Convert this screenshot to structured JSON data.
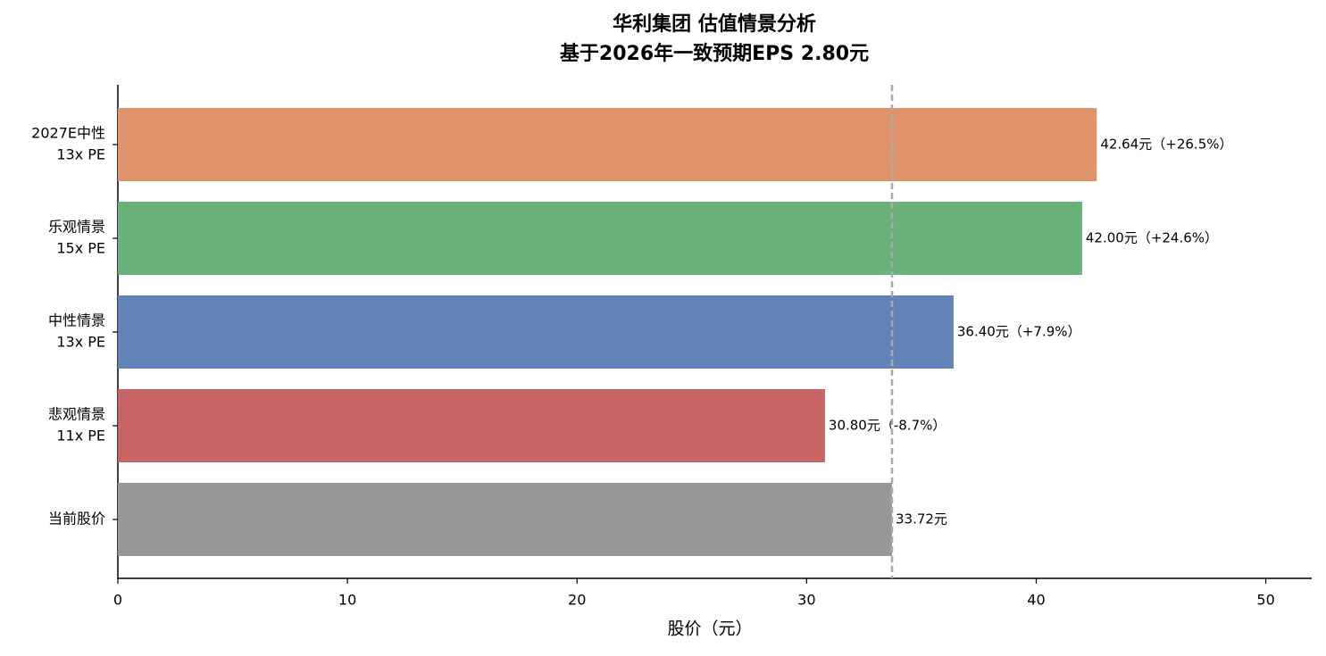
{
  "chart_data": {
    "type": "hbar",
    "title": "华利集团 估值情景分析",
    "subtitle": "基于2026年一致预期EPS 2.80元",
    "x_label": "股价（元）",
    "categories": [
      [
        "2027E中性",
        "13x PE"
      ],
      [
        "乐观情景",
        "15x PE"
      ],
      [
        "中性情景",
        "13x PE"
      ],
      [
        "悲观情景",
        "11x PE"
      ],
      [
        "当前股价"
      ]
    ],
    "values": [
      42.64,
      42.0,
      36.4,
      30.8,
      33.72
    ],
    "value_labels": [
      "42.64元（+26.5%）",
      "42.00元（+24.6%）",
      "36.40元（+7.9%）",
      "30.80元（-8.7%）",
      "33.72元"
    ],
    "colors": [
      "#e0926a",
      "#6ab17b",
      "#6283b8",
      "#c96567",
      "#979797"
    ],
    "reference_color": "#aaaaaa",
    "xlim": [
      0,
      52
    ],
    "xticks": [
      0,
      10,
      20,
      30,
      40,
      50
    ]
  }
}
